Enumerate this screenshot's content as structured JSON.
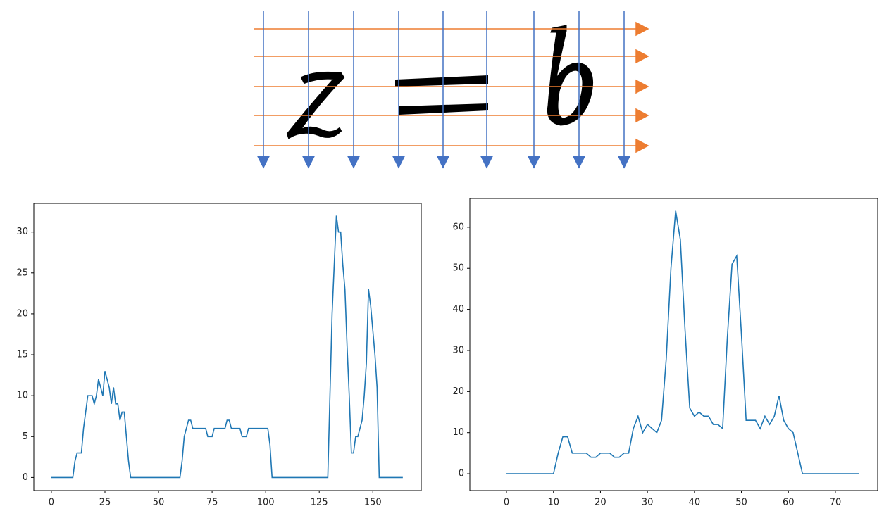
{
  "chart_data": [
    {
      "type": "line",
      "color": "#1f77b4",
      "x": [
        0,
        1,
        2,
        3,
        4,
        5,
        6,
        7,
        8,
        9,
        10,
        11,
        12,
        13,
        14,
        15,
        16,
        17,
        18,
        19,
        20,
        21,
        22,
        23,
        24,
        25,
        26,
        27,
        28,
        29,
        30,
        31,
        32,
        33,
        34,
        35,
        36,
        37,
        38,
        39,
        40,
        41,
        42,
        43,
        44,
        45,
        46,
        47,
        48,
        49,
        50,
        51,
        52,
        53,
        54,
        55,
        56,
        57,
        58,
        59,
        60,
        61,
        62,
        63,
        64,
        65,
        66,
        67,
        68,
        69,
        70,
        71,
        72,
        73,
        74,
        75,
        76,
        77,
        78,
        79,
        80,
        81,
        82,
        83,
        84,
        85,
        86,
        87,
        88,
        89,
        90,
        91,
        92,
        93,
        94,
        95,
        96,
        97,
        98,
        99,
        100,
        101,
        102,
        103,
        104,
        105,
        106,
        107,
        108,
        109,
        110,
        111,
        112,
        113,
        114,
        115,
        116,
        117,
        118,
        119,
        120,
        121,
        122,
        123,
        124,
        125,
        126,
        127,
        128,
        129,
        130,
        131,
        132,
        133,
        134,
        135,
        136,
        137,
        138,
        139,
        140,
        141,
        142,
        143,
        144,
        145,
        146,
        147,
        148,
        149,
        150,
        151,
        152,
        153,
        154,
        155,
        156,
        157,
        158,
        159,
        160,
        161,
        162,
        163,
        164
      ],
      "values": [
        0,
        0,
        0,
        0,
        0,
        0,
        0,
        0,
        0,
        0,
        0,
        2,
        3,
        3,
        3,
        6,
        8,
        10,
        10,
        10,
        9,
        10,
        12,
        11,
        10,
        13,
        12,
        11,
        9,
        11,
        9,
        9,
        7,
        8,
        8,
        5,
        2,
        0,
        0,
        0,
        0,
        0,
        0,
        0,
        0,
        0,
        0,
        0,
        0,
        0,
        0,
        0,
        0,
        0,
        0,
        0,
        0,
        0,
        0,
        0,
        0,
        2,
        5,
        6,
        7,
        7,
        6,
        6,
        6,
        6,
        6,
        6,
        6,
        5,
        5,
        5,
        6,
        6,
        6,
        6,
        6,
        6,
        7,
        7,
        6,
        6,
        6,
        6,
        6,
        5,
        5,
        5,
        6,
        6,
        6,
        6,
        6,
        6,
        6,
        6,
        6,
        6,
        4,
        0,
        0,
        0,
        0,
        0,
        0,
        0,
        0,
        0,
        0,
        0,
        0,
        0,
        0,
        0,
        0,
        0,
        0,
        0,
        0,
        0,
        0,
        0,
        0,
        0,
        0,
        0,
        10,
        20,
        26,
        32,
        30,
        30,
        26,
        23,
        16,
        10,
        3,
        3,
        5,
        5,
        6,
        7,
        10,
        14,
        23,
        21,
        18,
        15,
        11,
        0,
        0,
        0,
        0,
        0,
        0,
        0,
        0,
        0,
        0,
        0,
        0
      ],
      "xlim": [
        -8.2,
        172.6
      ],
      "xticks": [
        0,
        25,
        50,
        75,
        100,
        125,
        150
      ],
      "ylim": [
        -1.6,
        33.5
      ],
      "yticks": [
        0,
        5,
        10,
        15,
        20,
        25,
        30
      ]
    },
    {
      "type": "line",
      "color": "#1f77b4",
      "x": [
        0,
        1,
        2,
        3,
        4,
        5,
        6,
        7,
        8,
        9,
        10,
        11,
        12,
        13,
        14,
        15,
        16,
        17,
        18,
        19,
        20,
        21,
        22,
        23,
        24,
        25,
        26,
        27,
        28,
        29,
        30,
        31,
        32,
        33,
        34,
        35,
        36,
        37,
        38,
        39,
        40,
        41,
        42,
        43,
        44,
        45,
        46,
        47,
        48,
        49,
        50,
        51,
        52,
        53,
        54,
        55,
        56,
        57,
        58,
        59,
        60,
        61,
        62,
        63,
        64,
        65,
        66,
        67,
        68,
        69,
        70,
        71,
        72,
        73,
        74,
        75
      ],
      "values": [
        0,
        0,
        0,
        0,
        0,
        0,
        0,
        0,
        0,
        0,
        0,
        5,
        9,
        9,
        5,
        5,
        5,
        5,
        4,
        4,
        5,
        5,
        5,
        4,
        4,
        5,
        5,
        11,
        14,
        10,
        12,
        11,
        10,
        13,
        28,
        50,
        64,
        57,
        35,
        16,
        14,
        15,
        14,
        14,
        12,
        12,
        11,
        33,
        51,
        53,
        34,
        13,
        13,
        13,
        11,
        14,
        12,
        14,
        19,
        13,
        11,
        10,
        5,
        0,
        0,
        0,
        0,
        0,
        0,
        0,
        0,
        0,
        0,
        0,
        0,
        0
      ],
      "xlim": [
        -7.8,
        79
      ],
      "xticks": [
        0,
        10,
        20,
        30,
        40,
        50,
        60,
        70
      ],
      "ylim": [
        -4.1,
        67
      ],
      "yticks": [
        0,
        10,
        20,
        30,
        40,
        50,
        60
      ]
    }
  ]
}
